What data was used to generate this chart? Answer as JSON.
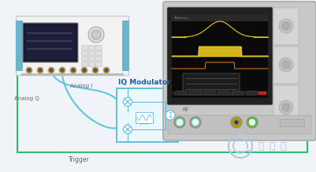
{
  "bg_color": "#f0f4f8",
  "green_color": "#2dc06e",
  "blue_color": "#5bc8e0",
  "iq_border_color": "#5bbbd8",
  "iq_fill_color": "#eaf7fb",
  "iq_label_color": "#1a5fa8",
  "label_color": "#666666",
  "rf_label_color": "#666666",
  "watermark_color": "#b0c8d8",
  "instrument_body": "#f2f2f2",
  "instrument_border": "#cccccc",
  "instrument_blue_sides": "#6ab4cc",
  "screen_dark": "#1a1a2e",
  "screen_blue": "#1e3a6e",
  "osc_body": "#d0d0d0",
  "osc_screen_bg": "#111111",
  "osc_trace_yellow": "#e8c820",
  "osc_trace_orange": "#e88020",
  "analog_i_label": "Analog I",
  "analog_q_label": "Analog Q",
  "rf_label": "RF",
  "trigger_label": "Trigger",
  "iq_modulator_label": "IQ Modulator",
  "tektronix_label": "Tektronix"
}
